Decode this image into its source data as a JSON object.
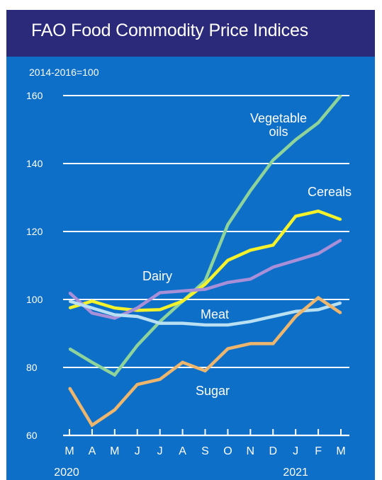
{
  "title": "FAO Food Commodity Price Indices",
  "chart_data": {
    "type": "line",
    "title": "FAO Food Commodity Price Indices",
    "subtitle": "2014-2016=100",
    "ylim": [
      60,
      160
    ],
    "yticks": [
      60,
      80,
      100,
      120,
      140,
      160
    ],
    "ytick_labels": [
      "60",
      "80",
      "100",
      "120",
      "140",
      "160"
    ],
    "x": [
      "M",
      "A",
      "M",
      "J",
      "J",
      "A",
      "S",
      "O",
      "N",
      "D",
      "J",
      "F",
      "M"
    ],
    "year_labels": [
      {
        "index": 0,
        "text": "2020"
      },
      {
        "index": 10,
        "text": "2021"
      }
    ],
    "grid": true,
    "legend": "labels placed next to each line",
    "series": [
      {
        "name": "Vegetable oils",
        "color": "#8ed39a",
        "values": [
          85.5,
          81.5,
          77.8,
          86.5,
          93.5,
          99.5,
          105.5,
          122,
          132,
          141,
          147,
          152,
          160
        ]
      },
      {
        "name": "Cereals",
        "color": "#f3f22b",
        "values": [
          97.5,
          99.5,
          97.5,
          96.8,
          97,
          99.5,
          104.5,
          111.5,
          114.5,
          116,
          124.5,
          126,
          123.5
        ]
      },
      {
        "name": "Dairy",
        "color": "#a98fd8",
        "values": [
          102,
          96,
          94.5,
          97.5,
          102,
          102.5,
          103,
          105,
          106,
          109.5,
          111.5,
          113.5,
          117.5
        ]
      },
      {
        "name": "Meat",
        "color": "#b9e0f2",
        "values": [
          99.5,
          97.5,
          95.5,
          95,
          93,
          93,
          92.5,
          92.5,
          93.5,
          95,
          96.5,
          97,
          99
        ]
      },
      {
        "name": "Sugar",
        "color": "#eeb66c",
        "values": [
          74,
          63,
          67.5,
          75,
          76.5,
          81.5,
          79,
          85.5,
          87,
          87,
          95,
          100.5,
          96
        ]
      }
    ]
  },
  "colors": {
    "title_bar": "#2b2a7a",
    "plot_background": "#0e6fc8",
    "gridline": "#ffffff",
    "text": "#ffffff"
  }
}
